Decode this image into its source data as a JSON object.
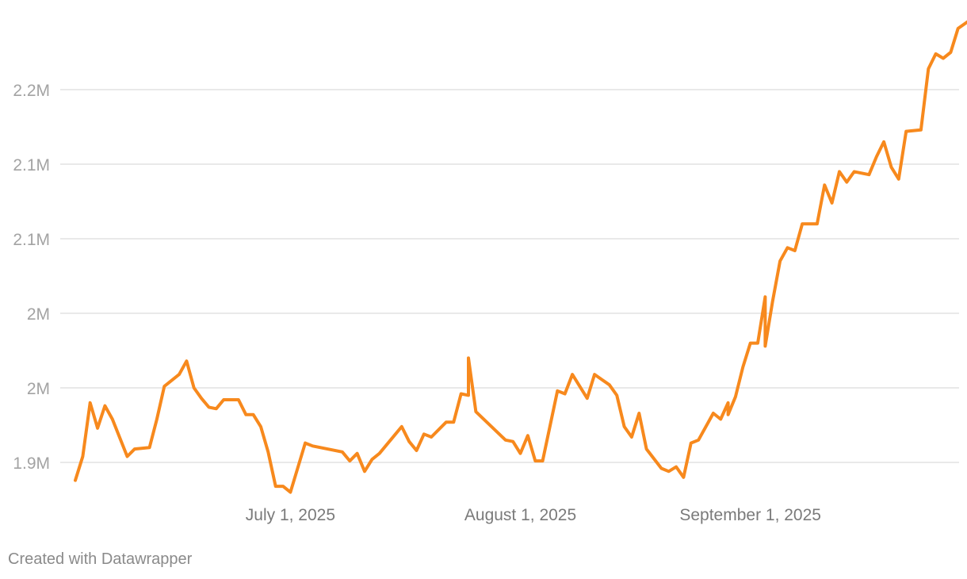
{
  "chart_data": {
    "type": "line",
    "title": "",
    "xlabel": "",
    "ylabel": "",
    "x_axis_type": "date",
    "xlim": [
      "2025-06-02",
      "2025-09-27"
    ],
    "ylim": [
      1.895,
      2.295
    ],
    "grid": "horizontal",
    "yticks": [
      {
        "value": 1.9,
        "label": "1.9M"
      },
      {
        "value": 1.95,
        "label": "2M"
      },
      {
        "value": 2.0,
        "label": "2M"
      },
      {
        "value": 2.05,
        "label": "2.1M"
      },
      {
        "value": 2.1,
        "label": "2.1M"
      },
      {
        "value": 2.15,
        "label": "2.2M"
      }
    ],
    "xticks": [
      {
        "value": "2025-07-01",
        "label": "July 1, 2025"
      },
      {
        "value": "2025-08-01",
        "label": "August 1, 2025"
      },
      {
        "value": "2025-09-01",
        "label": "September 1, 2025"
      }
    ],
    "series": [
      {
        "color": "#f7891d",
        "points": [
          [
            "2025-06-02",
            1.888
          ],
          [
            "2025-06-03",
            1.904
          ],
          [
            "2025-06-04",
            1.94
          ],
          [
            "2025-06-05",
            1.923
          ],
          [
            "2025-06-06",
            1.938
          ],
          [
            "2025-06-07",
            1.929
          ],
          [
            "2025-06-09",
            1.904
          ],
          [
            "2025-06-10",
            1.909
          ],
          [
            "2025-06-12",
            1.91
          ],
          [
            "2025-06-13",
            1.929
          ],
          [
            "2025-06-14",
            1.951
          ],
          [
            "2025-06-16",
            1.959
          ],
          [
            "2025-06-17",
            1.968
          ],
          [
            "2025-06-18",
            1.95
          ],
          [
            "2025-06-19",
            1.943
          ],
          [
            "2025-06-20",
            1.937
          ],
          [
            "2025-06-21",
            1.936
          ],
          [
            "2025-06-22",
            1.942
          ],
          [
            "2025-06-24",
            1.942
          ],
          [
            "2025-06-25",
            1.932
          ],
          [
            "2025-06-26",
            1.932
          ],
          [
            "2025-06-27",
            1.924
          ],
          [
            "2025-06-28",
            1.907
          ],
          [
            "2025-06-29",
            1.884
          ],
          [
            "2025-06-30",
            1.884
          ],
          [
            "2025-07-01",
            1.88
          ],
          [
            "2025-07-03",
            1.913
          ],
          [
            "2025-07-04",
            1.911
          ],
          [
            "2025-07-08",
            1.907
          ],
          [
            "2025-07-09",
            1.901
          ],
          [
            "2025-07-10",
            1.906
          ],
          [
            "2025-07-11",
            1.894
          ],
          [
            "2025-07-12",
            1.902
          ],
          [
            "2025-07-13",
            1.906
          ],
          [
            "2025-07-15",
            1.918
          ],
          [
            "2025-07-16",
            1.924
          ],
          [
            "2025-07-17",
            1.914
          ],
          [
            "2025-07-18",
            1.908
          ],
          [
            "2025-07-19",
            1.919
          ],
          [
            "2025-07-20",
            1.917
          ],
          [
            "2025-07-22",
            1.927
          ],
          [
            "2025-07-23",
            1.927
          ],
          [
            "2025-07-24",
            1.946
          ],
          [
            "2025-07-25",
            1.945
          ],
          [
            "2025-07-25",
            1.97
          ],
          [
            "2025-07-26",
            1.934
          ],
          [
            "2025-07-30",
            1.915
          ],
          [
            "2025-07-31",
            1.914
          ],
          [
            "2025-08-01",
            1.906
          ],
          [
            "2025-08-02",
            1.918
          ],
          [
            "2025-08-03",
            1.901
          ],
          [
            "2025-08-04",
            1.901
          ],
          [
            "2025-08-06",
            1.948
          ],
          [
            "2025-08-07",
            1.946
          ],
          [
            "2025-08-08",
            1.959
          ],
          [
            "2025-08-10",
            1.943
          ],
          [
            "2025-08-11",
            1.959
          ],
          [
            "2025-08-13",
            1.952
          ],
          [
            "2025-08-14",
            1.945
          ],
          [
            "2025-08-15",
            1.924
          ],
          [
            "2025-08-16",
            1.917
          ],
          [
            "2025-08-17",
            1.933
          ],
          [
            "2025-08-18",
            1.909
          ],
          [
            "2025-08-20",
            1.896
          ],
          [
            "2025-08-21",
            1.894
          ],
          [
            "2025-08-22",
            1.897
          ],
          [
            "2025-08-23",
            1.89
          ],
          [
            "2025-08-24",
            1.913
          ],
          [
            "2025-08-25",
            1.915
          ],
          [
            "2025-08-27",
            1.933
          ],
          [
            "2025-08-28",
            1.929
          ],
          [
            "2025-08-29",
            1.94
          ],
          [
            "2025-08-29",
            1.932
          ],
          [
            "2025-08-30",
            1.944
          ],
          [
            "2025-08-31",
            1.964
          ],
          [
            "2025-09-01",
            1.98
          ],
          [
            "2025-09-02",
            1.98
          ],
          [
            "2025-09-03",
            2.011
          ],
          [
            "2025-09-03",
            1.978
          ],
          [
            "2025-09-04",
            2.008
          ],
          [
            "2025-09-05",
            2.035
          ],
          [
            "2025-09-06",
            2.044
          ],
          [
            "2025-09-07",
            2.042
          ],
          [
            "2025-09-08",
            2.06
          ],
          [
            "2025-09-10",
            2.06
          ],
          [
            "2025-09-11",
            2.086
          ],
          [
            "2025-09-12",
            2.074
          ],
          [
            "2025-09-13",
            2.095
          ],
          [
            "2025-09-14",
            2.088
          ],
          [
            "2025-09-15",
            2.095
          ],
          [
            "2025-09-17",
            2.093
          ],
          [
            "2025-09-18",
            2.105
          ],
          [
            "2025-09-19",
            2.115
          ],
          [
            "2025-09-20",
            2.098
          ],
          [
            "2025-09-21",
            2.09
          ],
          [
            "2025-09-22",
            2.122
          ],
          [
            "2025-09-24",
            2.123
          ],
          [
            "2025-09-25",
            2.164
          ],
          [
            "2025-09-26",
            2.174
          ],
          [
            "2025-09-27",
            2.171
          ],
          [
            "2025-09-28",
            2.175
          ],
          [
            "2025-09-29",
            2.191
          ],
          [
            "2025-09-31",
            2.198
          ]
        ]
      }
    ]
  },
  "footer": {
    "credit": "Created with Datawrapper"
  }
}
